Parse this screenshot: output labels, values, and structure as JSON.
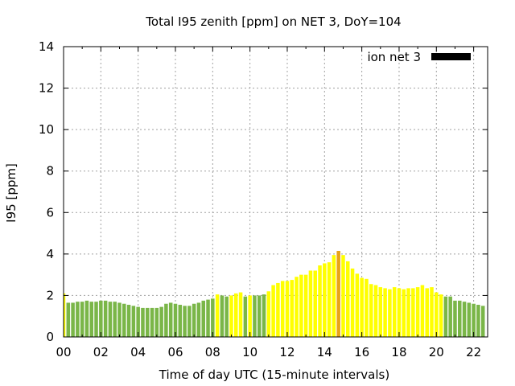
{
  "chart_data": {
    "type": "bar",
    "title": "Total I95 zenith [ppm] on NET 3, DoY=104",
    "xlabel": "Time of day UTC (15-minute intervals)",
    "ylabel": "I95 [ppm]",
    "ylim": [
      0,
      14
    ],
    "xlim_hours": [
      0,
      22.75
    ],
    "x_tick_labels": [
      "00",
      "02",
      "04",
      "06",
      "08",
      "10",
      "12",
      "14",
      "16",
      "18",
      "20",
      "22"
    ],
    "y_tick_labels": [
      "0",
      "2",
      "4",
      "6",
      "8",
      "10",
      "12",
      "14"
    ],
    "grid": true,
    "legend": {
      "label": "ion net 3",
      "color": "#000000",
      "placement": "top-right"
    },
    "colors": {
      "green": "#7ab648",
      "yellow": "#ffff00",
      "orange": "#e8a317"
    },
    "series": [
      {
        "name": "ion net 3",
        "interval_minutes": 15,
        "values": [
          2.1,
          1.65,
          1.65,
          1.7,
          1.7,
          1.75,
          1.7,
          1.7,
          1.75,
          1.75,
          1.7,
          1.7,
          1.65,
          1.6,
          1.55,
          1.5,
          1.45,
          1.4,
          1.4,
          1.4,
          1.4,
          1.45,
          1.6,
          1.65,
          1.6,
          1.55,
          1.5,
          1.5,
          1.6,
          1.65,
          1.75,
          1.8,
          1.85,
          2.05,
          2.0,
          1.95,
          2.0,
          2.1,
          2.15,
          1.95,
          2.0,
          2.0,
          2.0,
          2.05,
          2.2,
          2.5,
          2.6,
          2.7,
          2.7,
          2.75,
          2.9,
          3.0,
          3.0,
          3.2,
          3.2,
          3.45,
          3.55,
          3.6,
          3.95,
          4.15,
          3.95,
          3.65,
          3.3,
          3.05,
          2.85,
          2.8,
          2.55,
          2.5,
          2.4,
          2.35,
          2.3,
          2.4,
          2.35,
          2.3,
          2.35,
          2.35,
          2.4,
          2.5,
          2.35,
          2.4,
          2.15,
          2.05,
          1.95,
          1.95,
          1.75,
          1.75,
          1.7,
          1.65,
          1.6,
          1.55,
          1.5
        ],
        "bar_colors": [
          "yellow",
          "green",
          "green",
          "green",
          "green",
          "green",
          "green",
          "green",
          "green",
          "green",
          "green",
          "green",
          "green",
          "green",
          "green",
          "green",
          "green",
          "green",
          "green",
          "green",
          "green",
          "green",
          "green",
          "green",
          "green",
          "green",
          "green",
          "green",
          "green",
          "green",
          "green",
          "green",
          "green",
          "yellow",
          "green",
          "green",
          "yellow",
          "yellow",
          "yellow",
          "green",
          "yellow",
          "green",
          "green",
          "green",
          "yellow",
          "yellow",
          "yellow",
          "yellow",
          "yellow",
          "yellow",
          "yellow",
          "yellow",
          "yellow",
          "yellow",
          "yellow",
          "yellow",
          "yellow",
          "yellow",
          "yellow",
          "orange",
          "yellow",
          "yellow",
          "yellow",
          "yellow",
          "yellow",
          "yellow",
          "yellow",
          "yellow",
          "yellow",
          "yellow",
          "yellow",
          "yellow",
          "yellow",
          "yellow",
          "yellow",
          "yellow",
          "yellow",
          "yellow",
          "yellow",
          "yellow",
          "yellow",
          "yellow",
          "green",
          "green",
          "green",
          "green",
          "green",
          "green",
          "green",
          "green",
          "green"
        ]
      }
    ]
  }
}
